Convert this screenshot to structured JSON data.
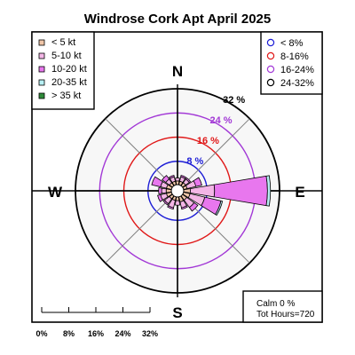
{
  "chart_data": {
    "type": "windrose",
    "title": "Windrose  Cork Apt April 2025",
    "directions": [
      "N",
      "NNE",
      "NE",
      "ENE",
      "E",
      "ESE",
      "SE",
      "SSE",
      "S",
      "SSW",
      "SW",
      "WSW",
      "W",
      "WNW",
      "NW",
      "NNW"
    ],
    "compass_labels": {
      "north": "N",
      "east": "E",
      "south": "S",
      "west": "W"
    },
    "speed_legend": [
      {
        "label": "< 5  kt",
        "color": "#f0c6a8"
      },
      {
        "label": "5-10 kt",
        "color": "#f3b6e6"
      },
      {
        "label": "10-20 kt",
        "color": "#e877ee"
      },
      {
        "label": "20-35 kt",
        "color": "#b7f0f4"
      },
      {
        "label": "> 35 kt",
        "color": "#2e8b3a"
      }
    ],
    "ring_legend": [
      {
        "label": "< 8%",
        "color": "#1d1dd6"
      },
      {
        "label": "8-16%",
        "color": "#e01818"
      },
      {
        "label": "16-24%",
        "color": "#a238d6"
      },
      {
        "label": "24-32%",
        "color": "#000000"
      }
    ],
    "rings": [
      {
        "value": 8,
        "label": "8 %",
        "color": "#1d1dd6"
      },
      {
        "value": 16,
        "label": "16 %",
        "color": "#e01818"
      },
      {
        "value": 24,
        "label": "24 %",
        "color": "#a238d6"
      },
      {
        "value": 32,
        "label": "32 %",
        "color": "#000000"
      }
    ],
    "rmax": 32,
    "series": [
      {
        "name": "< 5  kt",
        "values": [
          1.5,
          1.5,
          1.5,
          1.5,
          2.5,
          2.5,
          2.0,
          2.0,
          1.5,
          1.5,
          1.5,
          2.0,
          2.0,
          2.0,
          1.5,
          1.5
        ]
      },
      {
        "name": "5-10 kt",
        "values": [
          1.0,
          1.5,
          1.5,
          3.0,
          8.0,
          5.0,
          3.0,
          2.0,
          1.5,
          2.5,
          2.0,
          2.0,
          1.5,
          2.0,
          1.5,
          1.5
        ]
      },
      {
        "name": "10-20 kt",
        "values": [
          0.0,
          0.5,
          0.5,
          2.0,
          17.5,
          5.5,
          1.5,
          0.5,
          0.0,
          0.5,
          0.5,
          1.0,
          1.0,
          3.0,
          1.5,
          0.5
        ]
      },
      {
        "name": "20-35 kt",
        "values": [
          0,
          0,
          0,
          0,
          1.0,
          0.5,
          0,
          0,
          0,
          0,
          0,
          0,
          0,
          0,
          0,
          0
        ]
      },
      {
        "name": "> 35 kt",
        "values": [
          0,
          0,
          0,
          0,
          0,
          0,
          0,
          0,
          0,
          0,
          0,
          0,
          0,
          0,
          0,
          0
        ]
      }
    ],
    "calm_label": "Calm 0 %",
    "hours_label": "Tot Hours=720",
    "scale_ticks": [
      "0%",
      "8%",
      "16%",
      "24%",
      "32%"
    ]
  }
}
